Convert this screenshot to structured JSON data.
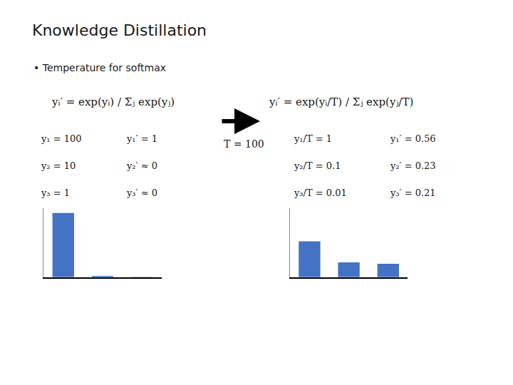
{
  "chart_data": [
    {
      "type": "bar",
      "title": "Knowledge Distillation",
      "subtitle": "• Temperature for softmax",
      "categories": [
        null,
        null,
        null
      ],
      "values": [
        1.0,
        0.02,
        0.005
      ],
      "color": "#4472C4",
      "ylim": [
        0,
        1.08
      ],
      "grid": false,
      "tick_labels": false,
      "annotations": [
        "yᵢ′ = exp(yᵢ) / Σⱼ exp(yⱼ)",
        "y₁ = 100",
        "y₂ = 10",
        "y₃ = 1",
        "y₁′ = 1",
        "y₂′ ≈ 0",
        "y₃′ ≈ 0",
        "T = 100"
      ]
    },
    {
      "type": "bar",
      "categories": [
        null,
        null,
        null
      ],
      "values": [
        0.56,
        0.23,
        0.21
      ],
      "color": "#4472C4",
      "ylim": [
        0,
        1.08
      ],
      "grid": false,
      "tick_labels": false,
      "annotations": [
        "yᵢ′ = exp(yᵢ/T) / Σⱼ exp(yⱼ/T)",
        "y₁/T = 1",
        "y₂/T = 0.1",
        "y₃/T = 0.01",
        "y₁′ = 0.56",
        "y₂′ = 0.23",
        "y₃′ = 0.21"
      ]
    }
  ]
}
